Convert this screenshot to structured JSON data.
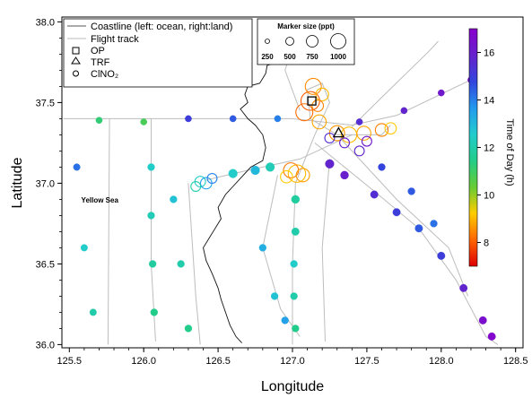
{
  "chart_data": {
    "type": "scatter",
    "xlabel": "Longitude",
    "ylabel": "Latitude",
    "xlim": [
      125.45,
      128.55
    ],
    "ylim": [
      35.98,
      38.03
    ],
    "xticks": [
      "125.5",
      "126.0",
      "126.5",
      "127.0",
      "127.5",
      "128.0",
      "128.5"
    ],
    "yticks": [
      "36.0",
      "36.5",
      "37.0",
      "37.5",
      "38.0"
    ],
    "grid": false,
    "legend": {
      "position": "top-left",
      "items": [
        {
          "label": "Coastline (left: ocean, right:land)",
          "symbol": "line",
          "color": "#555555"
        },
        {
          "label": "Flight track",
          "symbol": "line",
          "color": "#bbbbbb"
        },
        {
          "label": "OP",
          "symbol": "square"
        },
        {
          "label": "TRF",
          "symbol": "triangle"
        },
        {
          "label": "ClNO₂",
          "symbol": "circle"
        }
      ]
    },
    "size_legend": {
      "title": "Marker size (ppt)",
      "values": [
        "250",
        "500",
        "750",
        "1000"
      ]
    },
    "colorbar": {
      "label": "Time of Day (h)",
      "range": [
        7,
        17
      ],
      "ticks": [
        "8",
        "10",
        "12",
        "14",
        "16"
      ],
      "colors": [
        "#dd0000",
        "#ff6600",
        "#ffcc00",
        "#66cc33",
        "#22cc88",
        "#22cccc",
        "#2299ee",
        "#3344dd",
        "#6622cc",
        "#8800cc"
      ]
    },
    "annotations": [
      {
        "text": "Yellow Sea",
        "x": 125.58,
        "y": 36.88
      }
    ],
    "sites": [
      {
        "name": "OP",
        "marker": "square",
        "x": 127.13,
        "y": 37.51
      },
      {
        "name": "TRF",
        "marker": "triangle",
        "x": 127.31,
        "y": 37.31
      }
    ],
    "coastline": [
      [
        126.98,
        37.78
      ],
      [
        126.9,
        37.75
      ],
      [
        126.83,
        37.73
      ],
      [
        126.82,
        37.68
      ],
      [
        126.78,
        37.62
      ],
      [
        126.7,
        37.6
      ],
      [
        126.68,
        37.55
      ],
      [
        126.7,
        37.5
      ],
      [
        126.65,
        37.46
      ],
      [
        126.7,
        37.4
      ],
      [
        126.75,
        37.36
      ],
      [
        126.8,
        37.3
      ],
      [
        126.82,
        37.22
      ],
      [
        126.8,
        37.14
      ],
      [
        126.72,
        37.1
      ],
      [
        126.66,
        37.04
      ],
      [
        126.6,
        36.98
      ],
      [
        126.55,
        36.93
      ],
      [
        126.5,
        36.85
      ],
      [
        126.52,
        36.78
      ],
      [
        126.48,
        36.72
      ],
      [
        126.44,
        36.66
      ],
      [
        126.4,
        36.6
      ],
      [
        126.42,
        36.52
      ],
      [
        126.46,
        36.44
      ],
      [
        126.5,
        36.35
      ],
      [
        126.52,
        36.28
      ],
      [
        126.55,
        36.2
      ],
      [
        126.58,
        36.12
      ],
      [
        126.62,
        36.05
      ],
      [
        126.66,
        36.01
      ]
    ],
    "tracks": [
      [
        [
          125.46,
          37.4
        ],
        [
          126.3,
          37.4
        ],
        [
          127.0,
          37.4
        ],
        [
          127.4,
          37.36
        ],
        [
          127.7,
          37.42
        ],
        [
          128.22,
          37.65
        ]
      ],
      [
        [
          127.0,
          36.0
        ],
        [
          127.0,
          36.5
        ],
        [
          127.02,
          37.0
        ],
        [
          127.15,
          37.3
        ],
        [
          127.25,
          37.5
        ],
        [
          127.2,
          37.62
        ],
        [
          127.1,
          37.58
        ],
        [
          127.12,
          37.4
        ],
        [
          127.3,
          37.3
        ],
        [
          127.6,
          37.3
        ],
        [
          127.66,
          37.36
        ]
      ],
      [
        [
          127.15,
          37.25
        ],
        [
          127.55,
          36.95
        ],
        [
          127.85,
          36.72
        ],
        [
          128.1,
          36.4
        ],
        [
          128.3,
          36.05
        ],
        [
          128.38,
          36.0
        ]
      ],
      [
        [
          126.05,
          37.4
        ],
        [
          126.05,
          36.5
        ],
        [
          126.08,
          36.02
        ]
      ],
      [
        [
          125.77,
          37.4
        ],
        [
          125.76,
          36.0
        ]
      ],
      [
        [
          126.42,
          37.02
        ],
        [
          126.7,
          37.08
        ],
        [
          127.05,
          37.15
        ],
        [
          127.4,
          37.3
        ]
      ],
      [
        [
          127.32,
          37.28
        ],
        [
          127.7,
          36.9
        ],
        [
          128.05,
          36.6
        ],
        [
          128.18,
          36.3
        ]
      ],
      [
        [
          126.3,
          37.0
        ],
        [
          126.35,
          36.3
        ],
        [
          126.38,
          36.0
        ]
      ],
      [
        [
          126.9,
          37.05
        ],
        [
          126.8,
          36.6
        ],
        [
          126.92,
          36.22
        ],
        [
          127.05,
          36.05
        ]
      ],
      [
        [
          127.25,
          37.15
        ],
        [
          127.2,
          36.6
        ],
        [
          127.22,
          36.02
        ]
      ],
      [
        [
          127.4,
          37.35
        ],
        [
          127.62,
          37.55
        ],
        [
          127.92,
          37.82
        ],
        [
          127.98,
          37.88
        ]
      ],
      [
        [
          127.05,
          37.45
        ],
        [
          126.95,
          37.7
        ],
        [
          127.02,
          37.9
        ],
        [
          127.2,
          37.98
        ]
      ]
    ],
    "points": [
      {
        "x": 126.3,
        "y": 37.4,
        "t": 15.0,
        "s": 60
      },
      {
        "x": 126.6,
        "y": 37.4,
        "t": 14.5,
        "s": 60
      },
      {
        "x": 126.9,
        "y": 37.4,
        "t": 14.0,
        "s": 60
      },
      {
        "x": 127.45,
        "y": 37.38,
        "t": 15.5,
        "s": 60
      },
      {
        "x": 127.75,
        "y": 37.45,
        "t": 15.8,
        "s": 60
      },
      {
        "x": 128.0,
        "y": 37.56,
        "t": 16.2,
        "s": 60
      },
      {
        "x": 128.2,
        "y": 37.64,
        "t": 16.5,
        "s": 60
      },
      {
        "x": 127.02,
        "y": 36.1,
        "t": 11.5,
        "s": 80
      },
      {
        "x": 127.01,
        "y": 36.3,
        "t": 12.0,
        "s": 80
      },
      {
        "x": 127.01,
        "y": 36.5,
        "t": 12.5,
        "s": 80
      },
      {
        "x": 127.02,
        "y": 36.7,
        "t": 12.0,
        "s": 100
      },
      {
        "x": 127.02,
        "y": 36.9,
        "t": 11.8,
        "s": 120
      },
      {
        "x": 127.03,
        "y": 37.06,
        "t": 9.0,
        "s": 850
      },
      {
        "x": 126.99,
        "y": 37.08,
        "t": 8.3,
        "s": 600
      },
      {
        "x": 127.07,
        "y": 37.05,
        "t": 8.7,
        "s": 450
      },
      {
        "x": 126.96,
        "y": 37.04,
        "t": 9.2,
        "s": 350
      },
      {
        "x": 127.12,
        "y": 37.51,
        "t": 8.0,
        "s": 1000
      },
      {
        "x": 127.08,
        "y": 37.44,
        "t": 8.2,
        "s": 800
      },
      {
        "x": 127.14,
        "y": 37.6,
        "t": 8.5,
        "s": 700
      },
      {
        "x": 127.18,
        "y": 37.38,
        "t": 8.8,
        "s": 500
      },
      {
        "x": 127.2,
        "y": 37.55,
        "t": 9.0,
        "s": 400
      },
      {
        "x": 127.17,
        "y": 37.48,
        "t": 8.4,
        "s": 300
      },
      {
        "x": 127.3,
        "y": 37.31,
        "t": 8.6,
        "s": 600
      },
      {
        "x": 127.38,
        "y": 37.3,
        "t": 9.0,
        "s": 650
      },
      {
        "x": 127.48,
        "y": 37.31,
        "t": 8.8,
        "s": 500
      },
      {
        "x": 127.6,
        "y": 37.33,
        "t": 8.4,
        "s": 400
      },
      {
        "x": 127.66,
        "y": 37.34,
        "t": 9.2,
        "s": 300
      },
      {
        "x": 127.25,
        "y": 37.28,
        "t": 15.5,
        "s": 200
      },
      {
        "x": 127.35,
        "y": 37.25,
        "t": 16.0,
        "s": 200
      },
      {
        "x": 127.5,
        "y": 37.26,
        "t": 16.2,
        "s": 200
      },
      {
        "x": 127.45,
        "y": 37.2,
        "t": 15.8,
        "s": 200
      },
      {
        "x": 126.38,
        "y": 37.01,
        "t": 12.5,
        "s": 250
      },
      {
        "x": 126.42,
        "y": 37.0,
        "t": 13.5,
        "s": 300
      },
      {
        "x": 126.35,
        "y": 36.98,
        "t": 12.0,
        "s": 200
      },
      {
        "x": 126.46,
        "y": 37.03,
        "t": 14.0,
        "s": 200
      },
      {
        "x": 126.6,
        "y": 37.06,
        "t": 12.5,
        "s": 150
      },
      {
        "x": 126.75,
        "y": 37.08,
        "t": 13.0,
        "s": 150
      },
      {
        "x": 126.85,
        "y": 37.1,
        "t": 12.2,
        "s": 150
      },
      {
        "x": 127.25,
        "y": 37.12,
        "t": 15.8,
        "s": 150
      },
      {
        "x": 127.35,
        "y": 37.05,
        "t": 16.0,
        "s": 120
      },
      {
        "x": 127.55,
        "y": 36.93,
        "t": 15.5,
        "s": 100
      },
      {
        "x": 127.7,
        "y": 36.82,
        "t": 15.0,
        "s": 100
      },
      {
        "x": 127.85,
        "y": 36.72,
        "t": 14.5,
        "s": 100
      },
      {
        "x": 128.0,
        "y": 36.55,
        "t": 15.0,
        "s": 100
      },
      {
        "x": 128.15,
        "y": 36.35,
        "t": 15.8,
        "s": 100
      },
      {
        "x": 128.28,
        "y": 36.15,
        "t": 16.5,
        "s": 100
      },
      {
        "x": 128.34,
        "y": 36.05,
        "t": 16.8,
        "s": 100
      },
      {
        "x": 126.05,
        "y": 37.1,
        "t": 12.5,
        "s": 80
      },
      {
        "x": 126.05,
        "y": 36.8,
        "t": 12.2,
        "s": 80
      },
      {
        "x": 126.06,
        "y": 36.5,
        "t": 11.8,
        "s": 80
      },
      {
        "x": 126.07,
        "y": 36.2,
        "t": 11.5,
        "s": 80
      },
      {
        "x": 125.55,
        "y": 37.1,
        "t": 14.2,
        "s": 70
      },
      {
        "x": 125.6,
        "y": 36.6,
        "t": 12.5,
        "s": 70
      },
      {
        "x": 125.66,
        "y": 36.2,
        "t": 12.0,
        "s": 70
      },
      {
        "x": 126.2,
        "y": 36.9,
        "t": 12.8,
        "s": 80
      },
      {
        "x": 126.25,
        "y": 36.5,
        "t": 12.0,
        "s": 80
      },
      {
        "x": 126.3,
        "y": 36.1,
        "t": 11.5,
        "s": 80
      },
      {
        "x": 126.8,
        "y": 36.6,
        "t": 13.2,
        "s": 80
      },
      {
        "x": 126.88,
        "y": 36.3,
        "t": 12.8,
        "s": 80
      },
      {
        "x": 126.95,
        "y": 36.15,
        "t": 13.5,
        "s": 80
      },
      {
        "x": 127.6,
        "y": 37.1,
        "t": 14.8,
        "s": 80
      },
      {
        "x": 127.8,
        "y": 36.95,
        "t": 14.5,
        "s": 80
      },
      {
        "x": 127.95,
        "y": 36.75,
        "t": 14.2,
        "s": 80
      },
      {
        "x": 126.0,
        "y": 37.38,
        "t": 10.8,
        "s": 60
      },
      {
        "x": 125.7,
        "y": 37.39,
        "t": 11.2,
        "s": 60
      }
    ]
  }
}
